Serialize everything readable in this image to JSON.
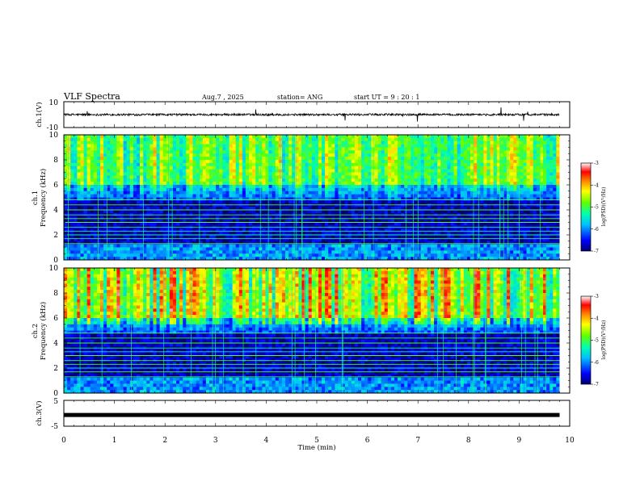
{
  "header": {
    "title": "VLF Spectra",
    "date": "Aug.7  , 2025",
    "station": "station= ANG",
    "start_ut": "start  UT  =   9  : 20 : 1"
  },
  "chart_data": [
    {
      "type": "line",
      "name": "ch1-waveform",
      "ylabel": "ch.1(V)",
      "ylim": [
        -10,
        10
      ],
      "ytick_labels": [
        "10",
        "-10"
      ],
      "approx_level": 0,
      "x_range_min": [
        0,
        9.8
      ]
    },
    {
      "type": "heatmap",
      "name": "ch1-spectrogram",
      "ylabel_channel": "ch.1",
      "ylabel": "Frequency  (kHz)",
      "ylim": [
        0,
        10
      ],
      "ytick_labels": [
        "0",
        "2",
        "4",
        "6",
        "8",
        "10"
      ],
      "x_range_min": [
        0,
        9.8
      ],
      "colorbar": {
        "range": [
          -7,
          -3
        ],
        "ticks": [
          "-3",
          "-4",
          "-5",
          "-6",
          "-7"
        ],
        "label": "log(PSD)(V²/Hz)"
      }
    },
    {
      "type": "heatmap",
      "name": "ch2-spectrogram",
      "ylabel_channel": "ch.2",
      "ylabel": "Frequency  (kHz)",
      "ylim": [
        0,
        10
      ],
      "ytick_labels": [
        "0",
        "2",
        "4",
        "6",
        "8",
        "10"
      ],
      "x_range_min": [
        0,
        9.8
      ],
      "colorbar": {
        "range": [
          -7,
          -3
        ],
        "ticks": [
          "-3",
          "-4",
          "-5",
          "-6",
          "-7"
        ],
        "label": "log(PSD)(V²/Hz)"
      }
    },
    {
      "type": "line",
      "name": "ch3-waveform",
      "ylabel": "ch.3(V)",
      "ylim": [
        -5,
        5
      ],
      "ytick_labels": [
        "5",
        "-5"
      ],
      "approx_level": -0.5,
      "x_range_min": [
        0,
        9.8
      ]
    }
  ],
  "x_axis": {
    "label": "Time  (min)",
    "range": [
      0,
      10
    ],
    "tick_labels": [
      "0",
      "1",
      "2",
      "3",
      "4",
      "5",
      "6",
      "7",
      "8",
      "9",
      "10"
    ]
  },
  "colors": {
    "cmap": [
      "#000080",
      "#0000ff",
      "#00a0ff",
      "#00ffff",
      "#00ff80",
      "#80ff00",
      "#ffff00",
      "#ff8000",
      "#ff0000",
      "#ffffff"
    ]
  }
}
